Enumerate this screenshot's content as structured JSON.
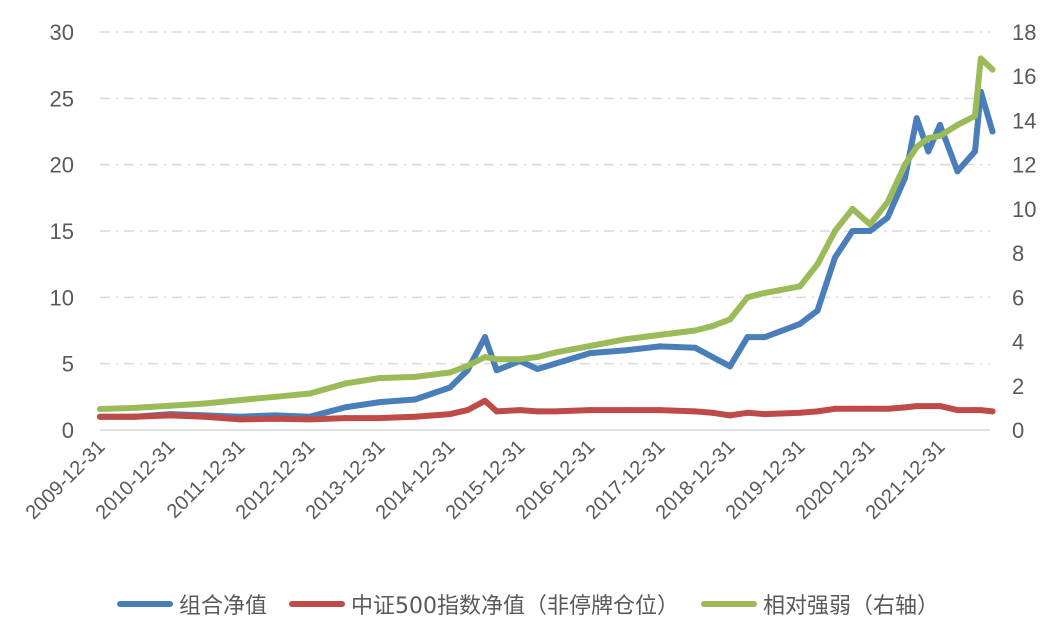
{
  "chart_data": {
    "type": "line",
    "title": "",
    "x": [
      "2009-12",
      "2010-06",
      "2010-12",
      "2011-06",
      "2011-12",
      "2012-06",
      "2012-12",
      "2013-06",
      "2013-12",
      "2014-06",
      "2014-12",
      "2015-03",
      "2015-06",
      "2015-08",
      "2015-12",
      "2016-03",
      "2016-06",
      "2016-12",
      "2017-06",
      "2017-12",
      "2018-06",
      "2018-09",
      "2018-12",
      "2019-03",
      "2019-06",
      "2019-12",
      "2020-03",
      "2020-06",
      "2020-09",
      "2020-12",
      "2021-03",
      "2021-06",
      "2021-08",
      "2021-10",
      "2021-12",
      "2022-03",
      "2022-06",
      "2022-07",
      "2022-09"
    ],
    "x_tick_labels": [
      "2009-12-31",
      "2010-12-31",
      "2011-12-31",
      "2012-12-31",
      "2013-12-31",
      "2014-12-31",
      "2015-12-31",
      "2016-12-31",
      "2017-12-31",
      "2018-12-31",
      "2019-12-31",
      "2020-12-31",
      "2021-12-31"
    ],
    "y_left": {
      "lim": [
        0,
        30
      ],
      "ticks": [
        "0",
        "5",
        "10",
        "15",
        "20",
        "25",
        "30"
      ]
    },
    "y_right": {
      "lim": [
        0,
        18
      ],
      "ticks": [
        "0",
        "2",
        "4",
        "6",
        "8",
        "10",
        "12",
        "14",
        "16",
        "18"
      ]
    },
    "grid": true,
    "legend_position": "bottom",
    "series": [
      {
        "name": "组合净值",
        "axis": "left",
        "color": "#4a7ebb",
        "values": [
          1.0,
          1.0,
          1.2,
          1.1,
          1.0,
          1.1,
          1.0,
          1.7,
          2.1,
          2.3,
          3.2,
          4.5,
          7.0,
          4.5,
          5.2,
          4.6,
          5.0,
          5.8,
          6.0,
          6.3,
          6.2,
          5.5,
          4.8,
          7.0,
          7.0,
          8.0,
          9.0,
          13.0,
          15.0,
          15.0,
          16.0,
          19.0,
          23.5,
          21.0,
          23.0,
          19.5,
          21.0,
          25.5,
          22.5
        ]
      },
      {
        "name": "中证500指数净值（非停牌仓位）",
        "axis": "left",
        "color": "#be4b48",
        "values": [
          1.0,
          1.0,
          1.1,
          1.0,
          0.8,
          0.85,
          0.8,
          0.9,
          0.9,
          1.0,
          1.2,
          1.5,
          2.2,
          1.4,
          1.5,
          1.4,
          1.4,
          1.5,
          1.5,
          1.5,
          1.4,
          1.3,
          1.1,
          1.3,
          1.2,
          1.3,
          1.4,
          1.6,
          1.6,
          1.6,
          1.6,
          1.7,
          1.8,
          1.8,
          1.8,
          1.5,
          1.5,
          1.5,
          1.4
        ]
      },
      {
        "name": "相对强弱（右轴）",
        "axis": "right",
        "color": "#9bbb59",
        "values": [
          0.95,
          1.0,
          1.1,
          1.2,
          1.35,
          1.5,
          1.65,
          2.1,
          2.35,
          2.4,
          2.6,
          2.9,
          3.3,
          3.2,
          3.2,
          3.3,
          3.5,
          3.8,
          4.1,
          4.3,
          4.5,
          4.7,
          5.0,
          6.0,
          6.2,
          6.5,
          7.5,
          9.0,
          10.0,
          9.3,
          10.3,
          12.0,
          12.8,
          13.2,
          13.3,
          13.8,
          14.2,
          16.8,
          16.3
        ]
      }
    ]
  }
}
